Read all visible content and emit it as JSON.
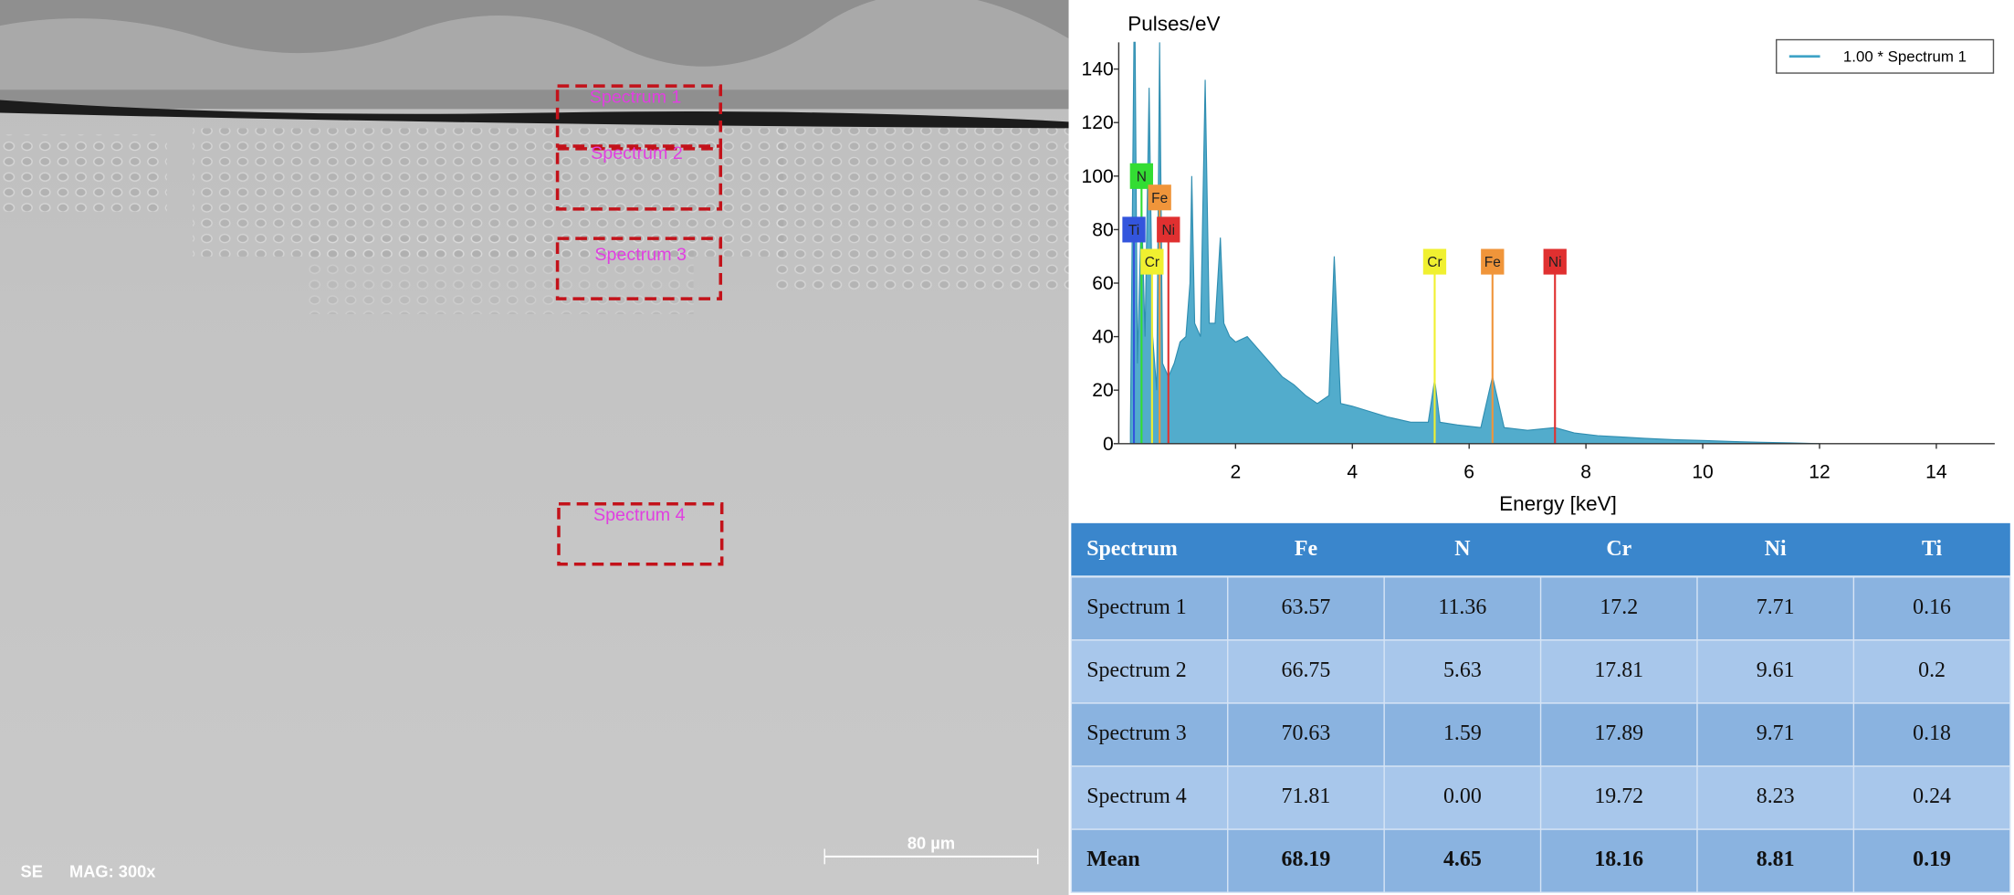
{
  "sem_image": {
    "spectrum_labels": [
      "Spectrum 1",
      "Spectrum 2",
      "Spectrum 3",
      "Spectrum 4"
    ],
    "detector": "SE",
    "magnification": "MAG: 300x",
    "scale_bar": "80 µm"
  },
  "chart_data": {
    "type": "area",
    "y_label": "Pulses/eV",
    "x_label": "Energy [keV]",
    "xlim": [
      0,
      15
    ],
    "ylim": [
      0,
      150
    ],
    "xticks": [
      2,
      4,
      6,
      8,
      10,
      12,
      14
    ],
    "yticks": [
      0,
      20,
      40,
      60,
      80,
      100,
      120,
      140
    ],
    "legend": "upper right",
    "x": [
      0.2,
      0.26,
      0.28,
      0.32,
      0.39,
      0.45,
      0.52,
      0.58,
      0.65,
      0.7,
      0.75,
      0.85,
      0.95,
      1.05,
      1.15,
      1.22,
      1.25,
      1.3,
      1.4,
      1.48,
      1.55,
      1.65,
      1.74,
      1.8,
      1.9,
      2.0,
      2.2,
      2.4,
      2.6,
      2.8,
      3.0,
      3.2,
      3.4,
      3.6,
      3.69,
      3.8,
      4.0,
      4.3,
      4.6,
      5.0,
      5.3,
      5.41,
      5.5,
      5.8,
      6.2,
      6.4,
      6.6,
      7.0,
      7.47,
      7.8,
      8.2,
      8.6,
      9.0,
      9.5,
      10.0,
      10.5,
      11.0,
      11.5,
      12.0
    ],
    "series": [
      {
        "name": "1.00 * Spectrum 1",
        "color": "#3fa3c6",
        "values": [
          5,
          150,
          150,
          30,
          90,
          40,
          133,
          40,
          20,
          150,
          30,
          25,
          30,
          38,
          40,
          60,
          100,
          45,
          40,
          136,
          45,
          45,
          77,
          45,
          40,
          38,
          40,
          35,
          30,
          25,
          22,
          18,
          15,
          18,
          70,
          15,
          14,
          12,
          10,
          8,
          8,
          24,
          8,
          7,
          6,
          25,
          6,
          5,
          6,
          4,
          3,
          2.5,
          2,
          1.5,
          1.2,
          0.8,
          0.5,
          0.3,
          0
        ]
      }
    ],
    "markers": [
      {
        "label": "N",
        "energy": 0.39,
        "height": 100,
        "color": "#33dd33"
      },
      {
        "label": "Fe",
        "energy": 0.7,
        "height": 92,
        "color": "#f0953a"
      },
      {
        "label": "Ti",
        "energy": 0.26,
        "height": 80,
        "color": "#3355dd"
      },
      {
        "label": "Ni",
        "energy": 0.85,
        "height": 80,
        "color": "#e03030"
      },
      {
        "label": "Cr",
        "energy": 0.57,
        "height": 68,
        "color": "#f0f030"
      },
      {
        "label": "Cr",
        "energy": 5.41,
        "height": 68,
        "color": "#f0f030"
      },
      {
        "label": "Fe",
        "energy": 6.4,
        "height": 68,
        "color": "#f0953a"
      },
      {
        "label": "Ni",
        "energy": 7.47,
        "height": 68,
        "color": "#e03030"
      }
    ]
  },
  "table": {
    "header": [
      "Spectrum",
      "Fe",
      "N",
      "Cr",
      "Ni",
      "Ti"
    ],
    "rows": [
      [
        "Spectrum 1",
        "63.57",
        "11.36",
        "17.2",
        "7.71",
        "0.16"
      ],
      [
        "Spectrum 2",
        "66.75",
        "5.63",
        "17.81",
        "9.61",
        "0.2"
      ],
      [
        "Spectrum 3",
        "70.63",
        "1.59",
        "17.89",
        "9.71",
        "0.18"
      ],
      [
        "Spectrum 4",
        "71.81",
        "0.00",
        "19.72",
        "8.23",
        "0.24"
      ],
      [
        "Mean",
        "68.19",
        "4.65",
        "18.16",
        "8.81",
        "0.19"
      ]
    ]
  }
}
